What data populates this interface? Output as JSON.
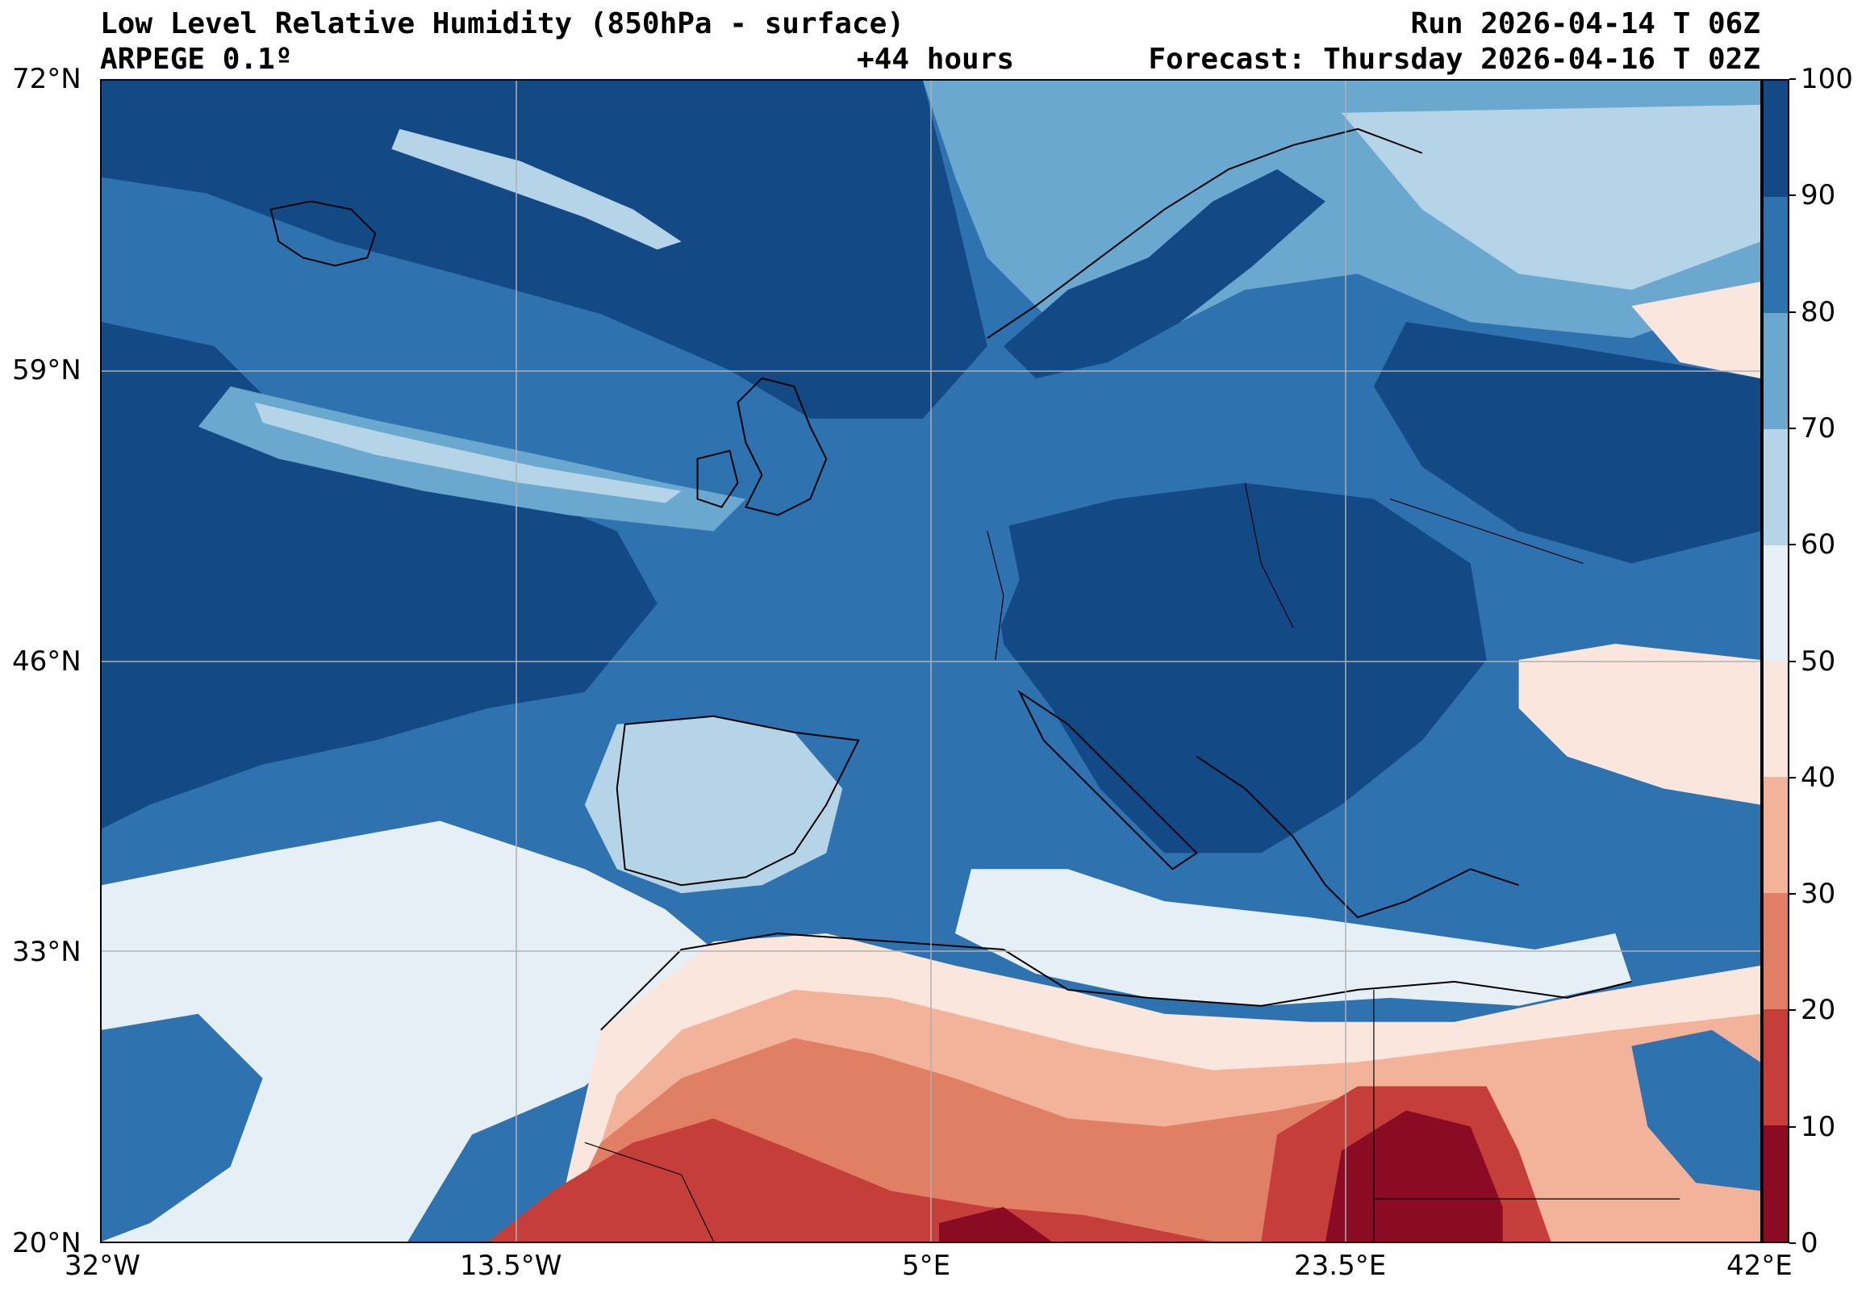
{
  "header": {
    "title": "Low Level Relative Humidity (850hPa - surface)",
    "model": "ARPEGE 0.1º",
    "lead": "+44 hours",
    "run": "Run 2026-04-14 T 06Z",
    "forecast": "Forecast: Thursday 2026-04-16 T 02Z"
  },
  "map": {
    "lat_labels": [
      "72°N",
      "59°N",
      "46°N",
      "33°N",
      "20°N"
    ],
    "lon_labels": [
      "32°W",
      "13.5°W",
      "5°E",
      "23.5°E",
      "42°E"
    ],
    "lat_range": [
      20,
      72
    ],
    "lon_range": [
      -32,
      42
    ],
    "grid": true
  },
  "colorbar": {
    "ticks": [
      "100",
      "90",
      "80",
      "70",
      "60",
      "50",
      "40",
      "30",
      "20",
      "10",
      "0"
    ],
    "colors_top_to_bottom": [
      "#134a86",
      "#2f72b0",
      "#6aa8d0",
      "#b5d4e7",
      "#e6eff6",
      "#fae6dc",
      "#f3b39b",
      "#e07f64",
      "#c53e3a",
      "#8b0a24"
    ]
  }
}
